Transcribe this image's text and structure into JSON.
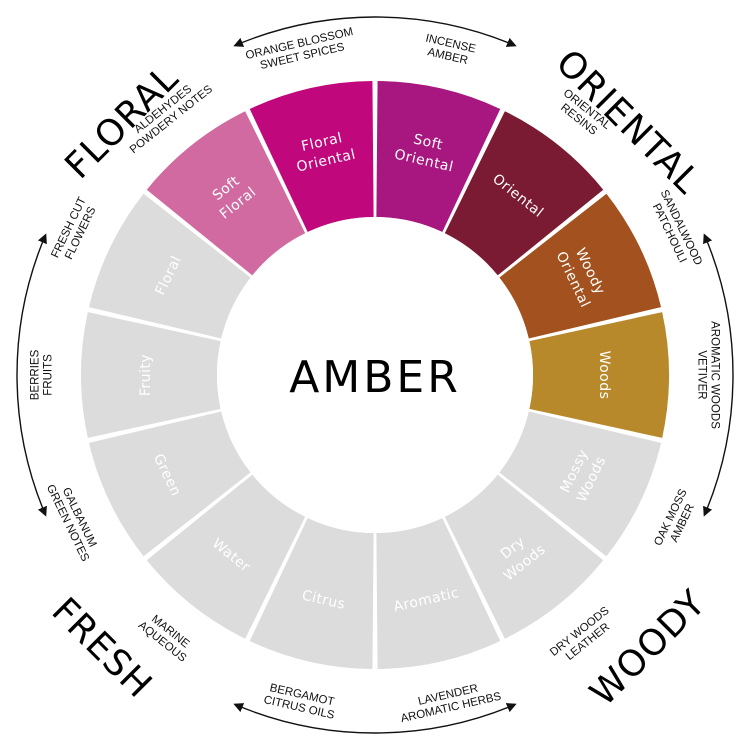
{
  "center_title": "AMBER",
  "families": [
    {
      "name": "FLORAL",
      "angle": -45
    },
    {
      "name": "ORIENTAL",
      "angle": 45
    },
    {
      "name": "WOODY",
      "angle": 135
    },
    {
      "name": "FRESH",
      "angle": 225
    }
  ],
  "segments": [
    {
      "lines": [
        "Floral",
        "Oriental"
      ],
      "color": "#c0077b",
      "text_color": "#ffffff",
      "notes": [
        "ORANGE BLOSSOM",
        "SWEET SPICES"
      ]
    },
    {
      "lines": [
        "Soft",
        "Oriental"
      ],
      "color": "#a8177f",
      "text_color": "#ffffff",
      "notes": [
        "INCENSE",
        "AMBER"
      ]
    },
    {
      "lines": [
        "Oriental"
      ],
      "color": "#7b1b33",
      "text_color": "#ffffff",
      "notes": [
        "ORIENTAL",
        "RESINS"
      ]
    },
    {
      "lines": [
        "Woody",
        "Oriental"
      ],
      "color": "#a3521f",
      "text_color": "#ffffff",
      "notes": [
        "SANDALWOOD",
        "PATCHOULI"
      ]
    },
    {
      "lines": [
        "Woods"
      ],
      "color": "#b8892b",
      "text_color": "#ffffff",
      "notes": [
        "AROMATIC WOODS",
        "VETIVER"
      ]
    },
    {
      "lines": [
        "Mossy",
        "Woods"
      ],
      "color": "#dcdcdc",
      "text_color": "#ffffff",
      "notes": [
        "OAK MOSS",
        "AMBER"
      ]
    },
    {
      "lines": [
        "Dry",
        "Woods"
      ],
      "color": "#dcdcdc",
      "text_color": "#ffffff",
      "notes": [
        "DRY WOODS",
        "LEATHER"
      ]
    },
    {
      "lines": [
        "Aromatic"
      ],
      "color": "#dcdcdc",
      "text_color": "#ffffff",
      "notes": [
        "LAVENDER",
        "AROMATIC HERBS"
      ]
    },
    {
      "lines": [
        "Citrus"
      ],
      "color": "#dcdcdc",
      "text_color": "#ffffff",
      "notes": [
        "BERGAMOT",
        "CITRUS OILS"
      ]
    },
    {
      "lines": [
        "Water"
      ],
      "color": "#dcdcdc",
      "text_color": "#ffffff",
      "notes": [
        "MARINE",
        "AQUEOUS"
      ]
    },
    {
      "lines": [
        "Green"
      ],
      "color": "#dcdcdc",
      "text_color": "#ffffff",
      "notes": [
        "GALBANUM",
        "GREEN NOTES"
      ]
    },
    {
      "lines": [
        "Fruity"
      ],
      "color": "#dcdcdc",
      "text_color": "#ffffff",
      "notes": [
        "BERRIES",
        "FRUITS"
      ]
    },
    {
      "lines": [
        "Floral"
      ],
      "color": "#dcdcdc",
      "text_color": "#ffffff",
      "notes": [
        "FRESH CUT",
        "FLOWERS"
      ]
    },
    {
      "lines": [
        "Soft",
        "Floral"
      ],
      "color": "#d06aa0",
      "text_color": "#ffffff",
      "notes": [
        "ALDEHYDES",
        "POWDERY NOTES"
      ]
    }
  ]
}
